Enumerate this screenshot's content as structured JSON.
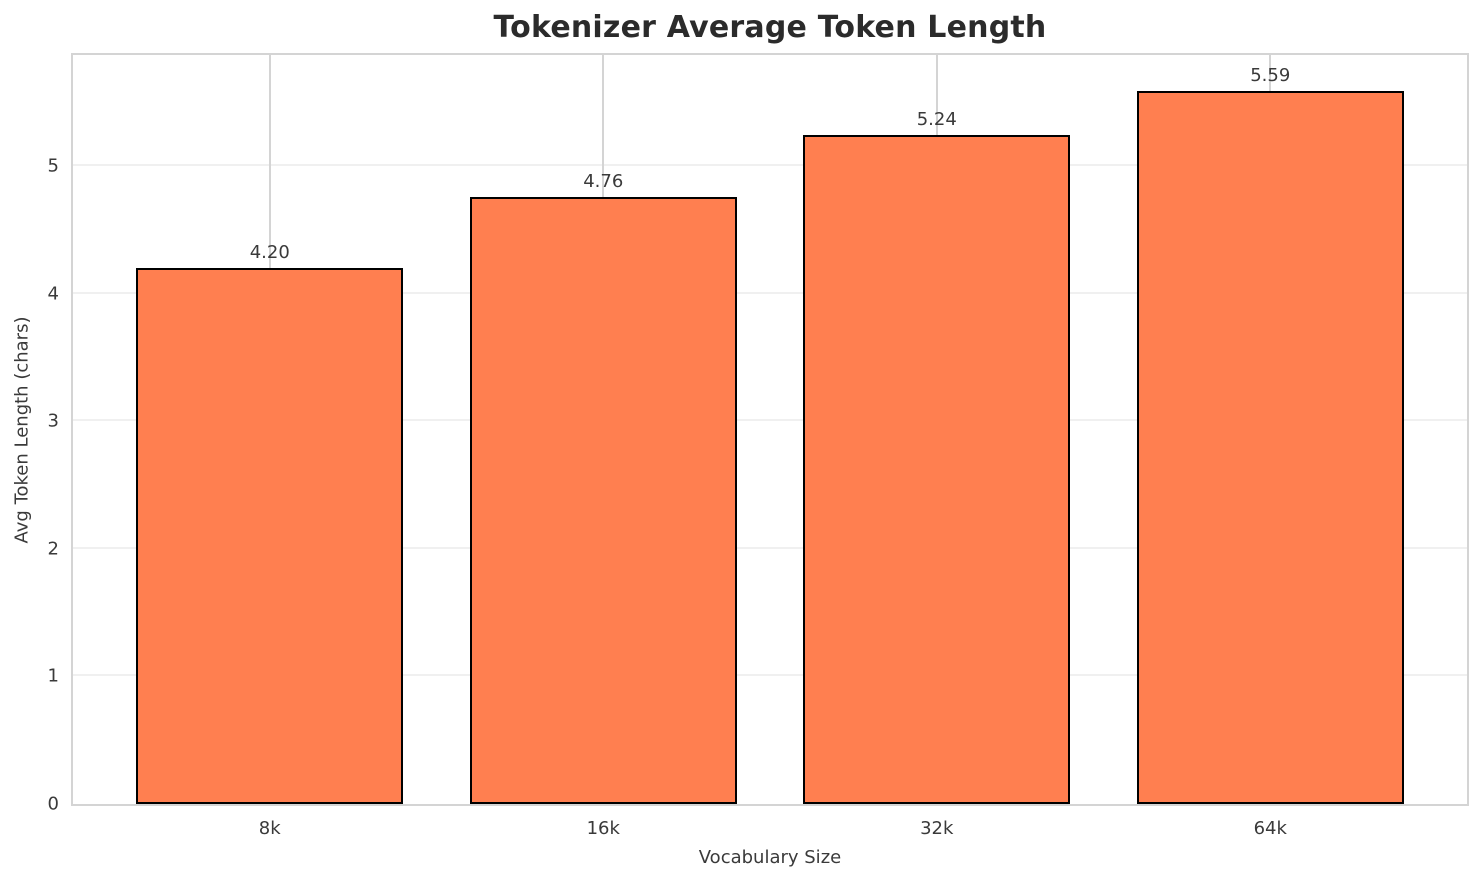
{
  "chart_data": {
    "type": "bar",
    "title": "Tokenizer Average Token Length",
    "xlabel": "Vocabulary Size",
    "ylabel": "Avg Token Length (chars)",
    "categories": [
      "8k",
      "16k",
      "32k",
      "64k"
    ],
    "values": [
      4.2,
      4.76,
      5.24,
      5.59
    ],
    "value_labels": [
      "4.20",
      "4.76",
      "5.24",
      "5.59"
    ],
    "ytick_labels": [
      "0",
      "1",
      "2",
      "3",
      "4",
      "5"
    ],
    "yticks": [
      0,
      1,
      2,
      3,
      4,
      5
    ],
    "ylim": [
      0,
      5.87
    ],
    "xlim": [
      -0.59,
      3.59
    ],
    "bar_width": 0.8,
    "grid": true,
    "legend": "none",
    "colors": {
      "bar_fill": "#FF7F50",
      "bar_edge": "#000000",
      "grid_vertical": "#d4d4d4",
      "grid_horizontal": "#f0f0f0",
      "spine": "#d4d4d4",
      "title_text": "#2b2b2b",
      "tick_text": "#3a3a3a"
    }
  }
}
